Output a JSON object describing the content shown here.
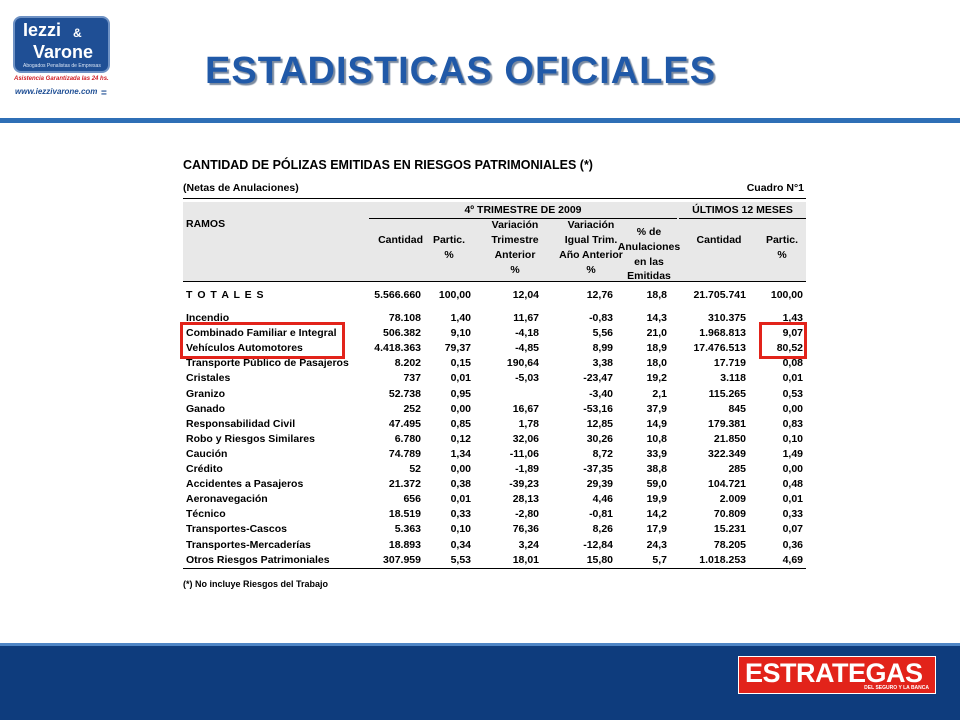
{
  "logo": {
    "line1": "Iezzi",
    "amp": "&",
    "line2": "Varone",
    "subtitle": "Abogados Penalistas de Empresas",
    "slogan": "Asistencia Garantizada las 24 hs.",
    "url": "www.iezzivarone.com",
    "mark": "="
  },
  "title": "ESTADISTICAS OFICIALES",
  "table": {
    "heading": "CANTIDAD DE PÓLIZAS EMITIDAS EN RIESGOS PATRIMONIALES (*)",
    "subheading": "(Netas de Anulaciones)",
    "cuadro": "Cuadro N°1",
    "group_trimestre": "4º TRIMESTRE DE 2009",
    "group_12m": "ÚLTIMOS 12 MESES",
    "col_ramos": "RAMOS",
    "col_cantidad": "Cantidad",
    "col_partic": [
      "Partic.",
      "%"
    ],
    "col_var_trim": [
      "Variación",
      "Trimestre",
      "Anterior",
      "%"
    ],
    "col_var_igual": [
      "Variación",
      "Igual Trim.",
      "Año Anterior",
      "%"
    ],
    "col_anul": [
      "% de",
      "Anulaciones",
      "en las",
      "Emitidas"
    ],
    "col_cantidad_12": "Cantidad",
    "col_partic_12": [
      "Partic.",
      "%"
    ],
    "totales": [
      "T O T A L E S",
      "5.566.660",
      "100,00",
      "12,04",
      "12,76",
      "18,8",
      "21.705.741",
      "100,00"
    ],
    "rows": [
      [
        "Incendio",
        "78.108",
        "1,40",
        "11,67",
        "-0,83",
        "14,3",
        "310.375",
        "1,43"
      ],
      [
        "Combinado Familiar e Integral",
        "506.382",
        "9,10",
        "-4,18",
        "5,56",
        "21,0",
        "1.968.813",
        "9,07"
      ],
      [
        "Vehículos Automotores",
        "4.418.363",
        "79,37",
        "-4,85",
        "8,99",
        "18,9",
        "17.476.513",
        "80,52"
      ],
      [
        "Transporte Público de Pasajeros",
        "8.202",
        "0,15",
        "190,64",
        "3,38",
        "18,0",
        "17.719",
        "0,08"
      ],
      [
        "Cristales",
        "737",
        "0,01",
        "-5,03",
        "-23,47",
        "19,2",
        "3.118",
        "0,01"
      ],
      [
        "Granizo",
        "52.738",
        "0,95",
        "",
        "-3,40",
        "2,1",
        "115.265",
        "0,53"
      ],
      [
        "Ganado",
        "252",
        "0,00",
        "16,67",
        "-53,16",
        "37,9",
        "845",
        "0,00"
      ],
      [
        "Responsabilidad Civil",
        "47.495",
        "0,85",
        "1,78",
        "12,85",
        "14,9",
        "179.381",
        "0,83"
      ],
      [
        "Robo y Riesgos Similares",
        "6.780",
        "0,12",
        "32,06",
        "30,26",
        "10,8",
        "21.850",
        "0,10"
      ],
      [
        "Caución",
        "74.789",
        "1,34",
        "-11,06",
        "8,72",
        "33,9",
        "322.349",
        "1,49"
      ],
      [
        "Crédito",
        "52",
        "0,00",
        "-1,89",
        "-37,35",
        "38,8",
        "285",
        "0,00"
      ],
      [
        "Accidentes a Pasajeros",
        "21.372",
        "0,38",
        "-39,23",
        "29,39",
        "59,0",
        "104.721",
        "0,48"
      ],
      [
        "Aeronavegación",
        "656",
        "0,01",
        "28,13",
        "4,46",
        "19,9",
        "2.009",
        "0,01"
      ],
      [
        "Técnico",
        "18.519",
        "0,33",
        "-2,80",
        "-0,81",
        "14,2",
        "70.809",
        "0,33"
      ],
      [
        "Transportes-Cascos",
        "5.363",
        "0,10",
        "76,36",
        "8,26",
        "17,9",
        "15.231",
        "0,07"
      ],
      [
        "Transportes-Mercaderías",
        "18.893",
        "0,34",
        "3,24",
        "-12,84",
        "24,3",
        "78.205",
        "0,36"
      ],
      [
        "Otros Riesgos Patrimoniales",
        "307.959",
        "5,53",
        "18,01",
        "15,80",
        "5,7",
        "1.018.253",
        "4,69"
      ]
    ],
    "footnote": "(*) No incluye Riesgos del Trabajo",
    "highlight_color": "#e2231a"
  },
  "brand": {
    "name": "ESTRATEGAS",
    "tagline": "DEL SEGURO Y LA BANCA"
  },
  "colors": {
    "title": "#2059a8",
    "bar": "#0e3c7d",
    "accent": "#2f6fb6"
  }
}
